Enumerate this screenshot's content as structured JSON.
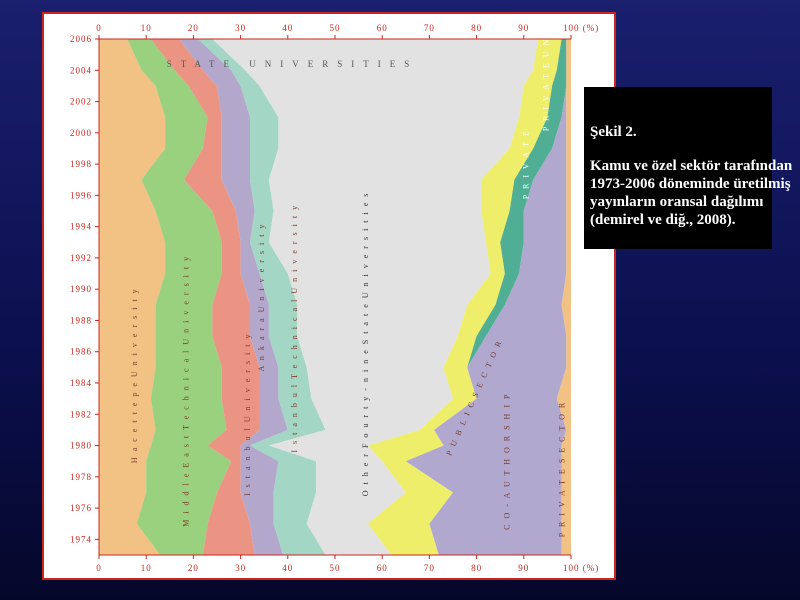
{
  "caption": {
    "title": "Şekil 2.",
    "text": "Kamu ve özel sektör tarafından 1973-2006 döneminde üretilmiş yayınların oransal dağılımı (demirel ve diğ., 2008)."
  },
  "chart_data": {
    "type": "area",
    "stacked": true,
    "orientation": "horizontal",
    "x_axis": {
      "range": [
        0,
        100
      ],
      "ticks": [
        0,
        10,
        20,
        30,
        40,
        50,
        60,
        70,
        80,
        90,
        100
      ],
      "tick_labels": [
        "0",
        "10",
        "20",
        "30",
        "40",
        "50",
        "60",
        "70",
        "80",
        "90",
        "100 (%)"
      ]
    },
    "y_axis": {
      "range": [
        1973,
        2006
      ],
      "ticks": [
        1974,
        1976,
        1978,
        1980,
        1982,
        1984,
        1986,
        1988,
        1990,
        1992,
        1994,
        1996,
        1998,
        2000,
        2002,
        2004,
        2006
      ],
      "tick_labels": [
        "1974",
        "1976",
        "1978",
        "1980",
        "1982",
        "1984",
        "1986",
        "1988",
        "1990",
        "1992",
        "1994",
        "1996",
        "1998",
        "2000",
        "2002",
        "2004",
        "2006"
      ]
    },
    "group_labels": [
      "STATE UNIVERSITIES",
      "PRIVATE UNIV."
    ],
    "y": [
      1973,
      1975,
      1977,
      1979,
      1980,
      1981,
      1983,
      1985,
      1987,
      1989,
      1991,
      1993,
      1995,
      1997,
      1999,
      2001,
      2003,
      2004,
      2006
    ],
    "cumulative_boundaries": [
      {
        "label": "Hacettepe University",
        "color": "#f2c184",
        "values": [
          13,
          8,
          10,
          10,
          11,
          12,
          11,
          12,
          12,
          12,
          14,
          14,
          12,
          9,
          14,
          14,
          12,
          9,
          6
        ]
      },
      {
        "label": "Middle East Technical University",
        "color": "#99d17f",
        "values": [
          22,
          23,
          25,
          28,
          23,
          27,
          26,
          26,
          24,
          24,
          26,
          26,
          24,
          18,
          22,
          23,
          19,
          16,
          11
        ]
      },
      {
        "label": "Istanbul University",
        "color": "#ec9484",
        "values": [
          33,
          32,
          30,
          30,
          30,
          34,
          34,
          34,
          32,
          32,
          30,
          30,
          29,
          26,
          26,
          26,
          25,
          22,
          17
        ]
      },
      {
        "label": "Ankara University",
        "color": "#b3a8cc",
        "values": [
          39,
          37,
          37,
          38,
          32,
          40,
          38,
          38,
          36,
          36,
          34,
          32,
          33,
          32,
          32,
          32,
          30,
          28,
          21
        ]
      },
      {
        "label": "Istanbul Technical University",
        "color": "#a3d6c5",
        "values": [
          48,
          44,
          46,
          46,
          36,
          48,
          45,
          44,
          42,
          42,
          40,
          36,
          37,
          36,
          38,
          38,
          34,
          31,
          24
        ]
      },
      {
        "label": "Other Fourty-nine State Universities",
        "color": "#e2e2e2",
        "values": [
          62,
          57,
          65,
          60,
          57,
          68,
          75,
          73,
          76,
          78,
          83,
          82,
          81,
          81,
          87,
          89,
          90,
          92,
          93
        ]
      },
      {
        "label": "PUBLIC SECTOR",
        "color": "#eeee6a",
        "values": [
          72,
          70,
          75,
          65,
          73,
          71,
          80,
          78,
          80,
          84,
          86,
          85,
          87,
          88,
          92,
          95,
          96,
          97,
          98
        ]
      },
      {
        "label": "PRIVATE",
        "color": "#4fae93",
        "values": [
          72,
          70,
          75,
          65,
          73,
          71,
          80,
          78,
          82,
          86,
          89,
          90,
          90,
          92,
          96,
          98,
          99,
          99,
          99
        ]
      },
      {
        "label": "CO-AUTHORSHIP",
        "color": "#b0a8cf",
        "values": [
          98,
          98,
          98,
          98,
          98,
          99,
          97,
          99,
          99,
          98,
          99,
          99,
          99,
          99,
          99,
          99,
          99,
          99,
          99
        ]
      },
      {
        "label": "PRIVATE SECTOR",
        "color": "#f2c184",
        "values": [
          100,
          100,
          100,
          100,
          100,
          100,
          100,
          100,
          100,
          100,
          100,
          100,
          100,
          100,
          100,
          100,
          100,
          100,
          100
        ]
      }
    ],
    "series_names": [
      "Hacettepe University",
      "Middle East Technical University",
      "Istanbul University",
      "Ankara University",
      "Istanbul Technical University",
      "Other Fourty-nine State Universities",
      "PUBLIC SECTOR",
      "PRIVATE",
      "CO-AUTHORSHIP",
      "PRIVATE SECTOR"
    ],
    "grid": false,
    "legend": "none"
  }
}
